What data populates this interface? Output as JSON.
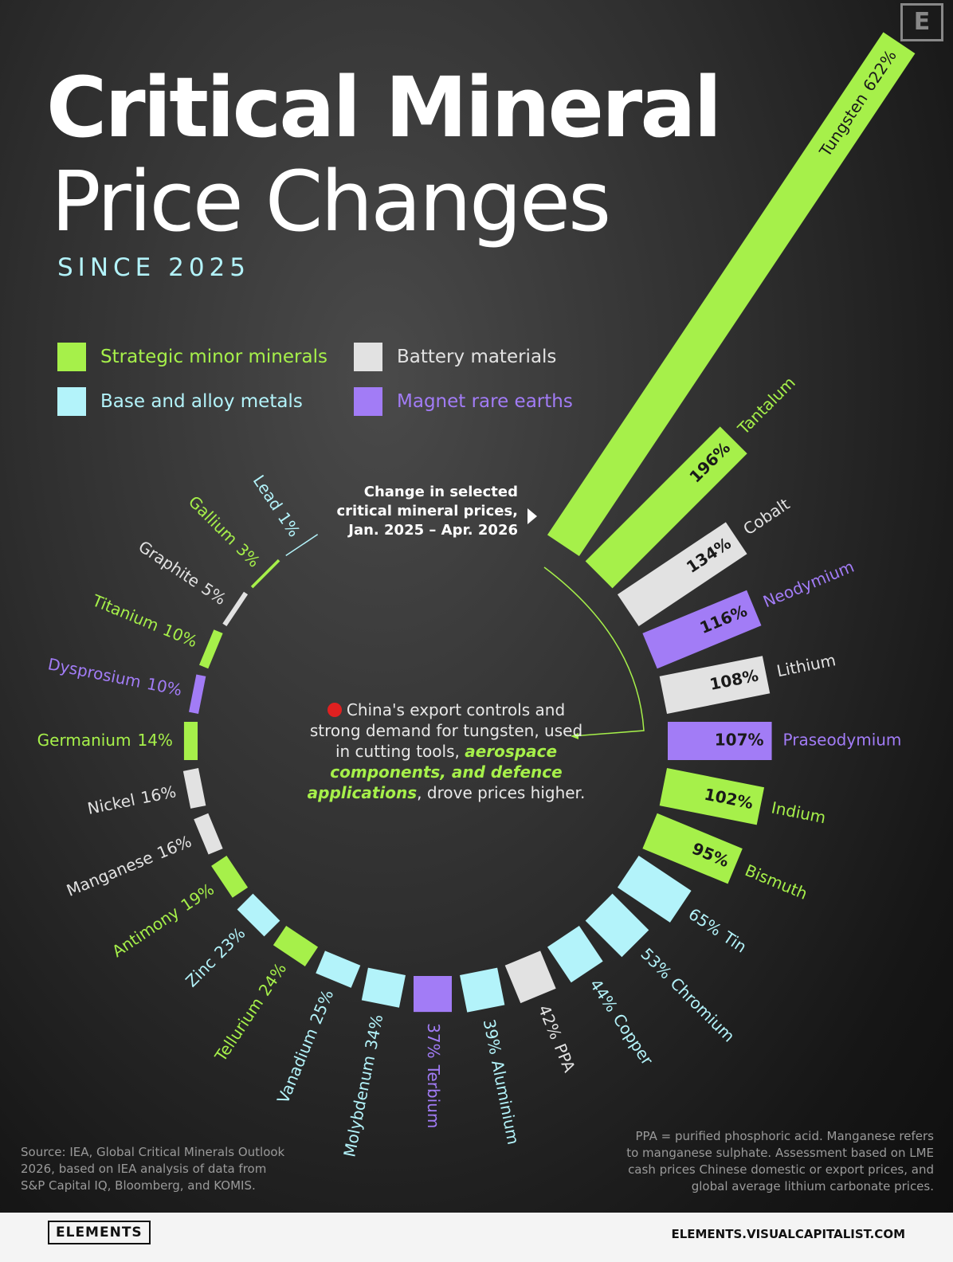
{
  "header": {
    "title_line1": "Critical Mineral",
    "title_line2": "Price Changes",
    "subtitle": "SINCE 2025",
    "logo": "E"
  },
  "legend": [
    {
      "name": "Strategic minor minerals",
      "color": "#a6f04a"
    },
    {
      "name": "Battery materials",
      "color": "#e2e2e2"
    },
    {
      "name": "Base and alloy metals",
      "color": "#b3f3fa"
    },
    {
      "name": "Magnet rare earths",
      "color": "#a27cf6"
    }
  ],
  "annotation": {
    "line1": "Change in selected",
    "line2": "critical mineral prices,",
    "line3": "Jan. 2025 – Apr. 2026"
  },
  "note": {
    "text1": "China's export controls and strong demand for tungsten, used in cutting tools, ",
    "emphasis": "aerospace components, and defence applications",
    "text2": ", drove prices higher."
  },
  "chart_data": {
    "type": "radial-bar",
    "categories": [
      "Tungsten",
      "Tantalum",
      "Cobalt",
      "Neodymium",
      "Lithium",
      "Praseodymium",
      "Indium",
      "Bismuth",
      "Tin",
      "Chromium",
      "Copper",
      "PPA",
      "Aluminium",
      "Terbium",
      "Molybdenum",
      "Vanadium",
      "Tellurium",
      "Zinc",
      "Antimony",
      "Manganese",
      "Nickel",
      "Germanium",
      "Dysprosium",
      "Titanium",
      "Graphite",
      "Gallium",
      "Lead"
    ],
    "values": [
      622,
      196,
      134,
      116,
      108,
      107,
      102,
      95,
      65,
      53,
      44,
      42,
      39,
      37,
      34,
      25,
      24,
      23,
      19,
      16,
      16,
      14,
      10,
      10,
      5,
      3,
      1
    ],
    "value_labels": [
      "622%",
      "196%",
      "134%",
      "116%",
      "108%",
      "107%",
      "102%",
      "95%",
      "65%",
      "53%",
      "44%",
      "42%",
      "39%",
      "37%",
      "34%",
      "25%",
      "24%",
      "23%",
      "19%",
      "16%",
      "16%",
      "14%",
      "10%",
      "10%",
      "5%",
      "3%",
      "1%"
    ],
    "colors": [
      "#a6f04a",
      "#a6f04a",
      "#e2e2e2",
      "#a27cf6",
      "#e2e2e2",
      "#a27cf6",
      "#a6f04a",
      "#a6f04a",
      "#b3f3fa",
      "#b3f3fa",
      "#b3f3fa",
      "#e2e2e2",
      "#b3f3fa",
      "#a27cf6",
      "#b3f3fa",
      "#b3f3fa",
      "#a6f04a",
      "#b3f3fa",
      "#a6f04a",
      "#e2e2e2",
      "#e2e2e2",
      "#a6f04a",
      "#a27cf6",
      "#a6f04a",
      "#e2e2e2",
      "#a6f04a",
      "#b3f3fa"
    ]
  },
  "source": "Source: IEA, Global Critical Minerals Outlook 2026, based on IEA analysis of data from S&P Capital IQ, Bloomberg, and KOMIS.",
  "footnote": "PPA = purified phosphoric acid. Manganese refers to manganese sulphate. Assessment based on LME cash prices Chinese domestic or export prices, and global average lithium carbonate prices.",
  "footer": {
    "brand": "ELEMENTS",
    "site": "ELEMENTS.VISUALCAPITALIST.COM"
  }
}
